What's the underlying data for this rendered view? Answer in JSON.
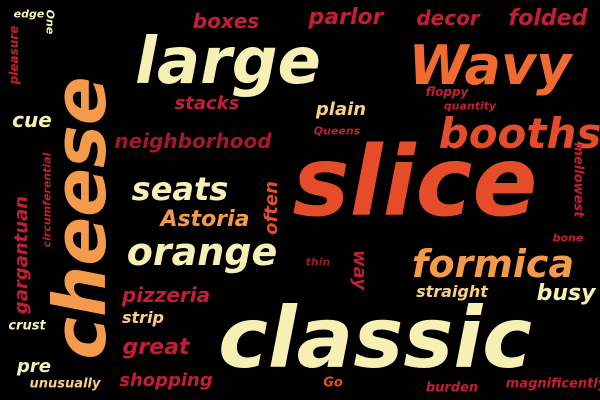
{
  "words": {
    "slice": "slice",
    "cheese": "cheese",
    "classic": "classic",
    "large": "large",
    "wavy": "Wavy",
    "booths": "booths",
    "formica": "formica",
    "orange": "orange",
    "seats": "seats",
    "neighborhood": "neighborhood",
    "astoria": "Astoria",
    "pizzeria": "pizzeria",
    "great": "great",
    "shopping": "shopping",
    "boxes": "boxes",
    "parlor": "parlor",
    "decor": "decor",
    "folded": "folded",
    "stacks": "stacks",
    "plain": "plain",
    "floppy": "floppy",
    "quantity": "quantity",
    "queens": "Queens",
    "often": "often",
    "thin": "thin",
    "way": "way",
    "straight": "straight",
    "busy": "busy",
    "bone": "bone",
    "mellowest": "mellowest",
    "strip": "strip",
    "crust": "crust",
    "pre": "pre",
    "unusually": "unusually",
    "go": "Go",
    "burden": "burden",
    "magnificently": "magnificently",
    "gargantuan": "gargantuan",
    "circumferential": "circumferential",
    "cue": "cue",
    "pleasure": "pleasure",
    "edge": "edge",
    "one": "One"
  },
  "colors": {
    "background": "#000000",
    "cream": "#f7f0b4",
    "light_orange": "#f39a4b",
    "red_orange": "#e44c2a",
    "crimson": "#c41e34",
    "pale_gold": "#f7d084",
    "dark_red": "#a11a2c",
    "orange": "#f16b30"
  }
}
